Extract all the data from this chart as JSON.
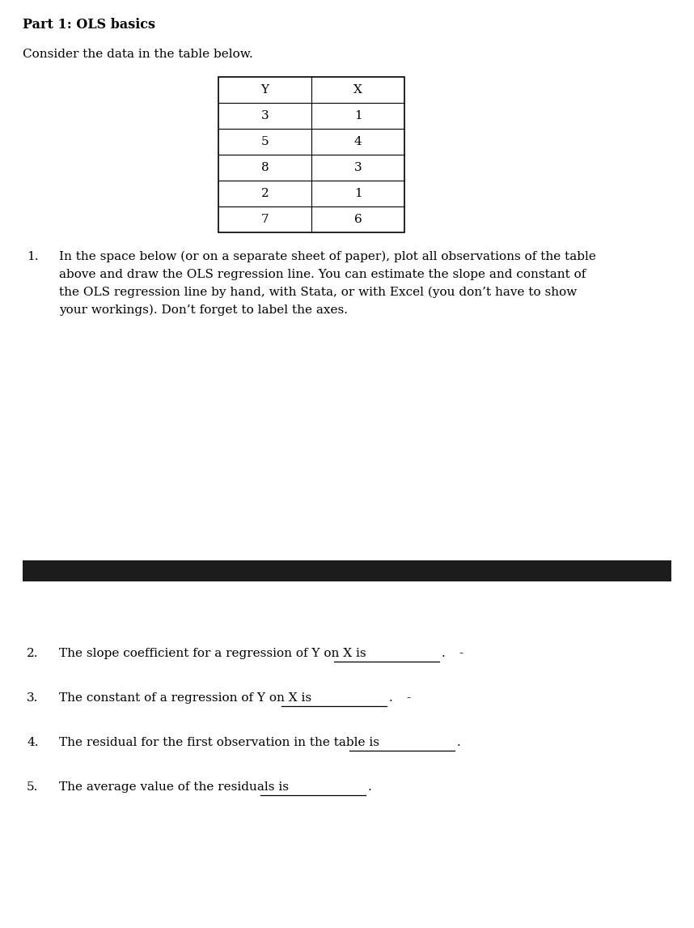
{
  "title": "Part 1: OLS basics",
  "subtitle": "Consider the data in the table below.",
  "table_headers": [
    "Y",
    "X"
  ],
  "table_data": [
    [
      "3",
      "1"
    ],
    [
      "5",
      "4"
    ],
    [
      "8",
      "3"
    ],
    [
      "2",
      "1"
    ],
    [
      "7",
      "6"
    ]
  ],
  "item1_num": "1.",
  "item1_text": "In the space below (or on a separate sheet of paper), plot all observations of the table\nabove and draw the OLS regression line. You can estimate the slope and constant of\nthe OLS regression line by hand, with Stata, or with Excel (you don’t have to show\nyour workings). Don’t forget to label the axes.",
  "item2_num": "2.",
  "item2_text": "The slope coefficient for a regression of Y on X is",
  "item3_num": "3.",
  "item3_text": "The constant of a regression of Y on X is",
  "item4_num": "4.",
  "item4_text": "The residual for the first observation in the table is",
  "item5_num": "5.",
  "item5_text": "The average value of the residuals is",
  "bg_color": "#ffffff",
  "text_color": "#000000",
  "divider_color": "#1c1c1c",
  "font_size_title": 11.5,
  "font_size_body": 11.0,
  "figwidth": 8.58,
  "figheight": 11.46,
  "dpi": 100
}
